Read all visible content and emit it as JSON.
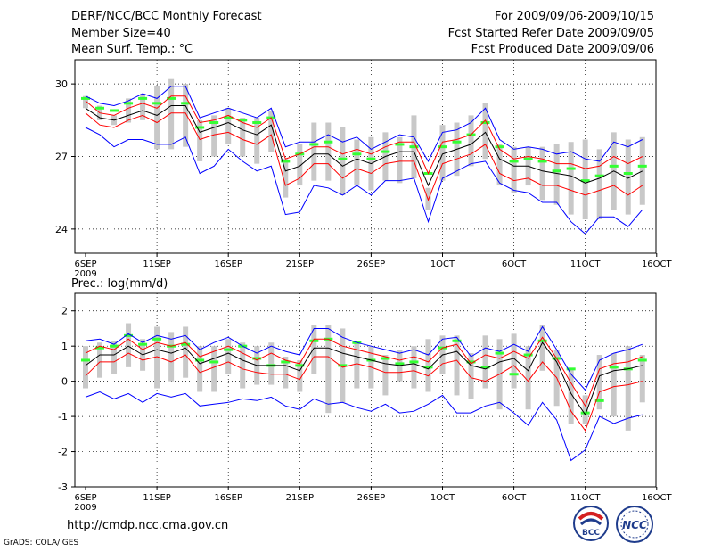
{
  "header": {
    "title": "DERF/NCC/BCC Monthly Forecast",
    "member_size": "Member Size=40",
    "variable": "Mean Surf. Temp.: °C",
    "period": "For 2009/09/06-2009/10/15",
    "refer_date": "Fcst Started Refer Date 2009/09/05",
    "produced_date": "Fcst Produced Date 2009/09/06"
  },
  "footer": {
    "url": "http://cmdp.ncc.cma.gov.cn",
    "credit": "GrADS: COLA/IGES",
    "logo_bcc": "BCC",
    "logo_ncc": "NCC"
  },
  "colors": {
    "max_min": "#0000ff",
    "ensemble_spread": "#ff0000",
    "ensemble_mean": "#000000",
    "box": "#c8c8c8",
    "member_mark": "#33ff33",
    "grid": "#000000"
  },
  "chart_data": [
    {
      "type": "line",
      "title": "Mean Surf. Temp.: °C",
      "x_tick_labels": [
        "6SEP",
        "11SEP",
        "16SEP",
        "21SEP",
        "26SEP",
        "1OCT",
        "6OCT",
        "11OCT",
        "16OCT"
      ],
      "x_year_label": "2009",
      "y_ticks": [
        24,
        27,
        30
      ],
      "ylim": [
        23,
        31
      ],
      "days": 40,
      "grid": true,
      "series": [
        {
          "name": "max",
          "values": [
            29.5,
            29.2,
            29.1,
            29.3,
            29.6,
            29.4,
            29.9,
            29.9,
            28.6,
            28.8,
            29.0,
            28.8,
            28.6,
            29.0,
            27.4,
            27.6,
            27.6,
            27.9,
            27.6,
            27.8,
            27.3,
            27.6,
            27.9,
            27.8,
            26.8,
            28.0,
            28.1,
            28.4,
            29.0,
            27.7,
            27.3,
            27.4,
            27.3,
            27.1,
            27.2,
            26.9,
            26.8,
            27.6,
            27.4,
            27.7
          ]
        },
        {
          "name": "upper",
          "values": [
            29.3,
            28.8,
            28.7,
            29.0,
            29.2,
            29.0,
            29.5,
            29.5,
            28.4,
            28.5,
            28.7,
            28.4,
            28.2,
            28.6,
            26.9,
            27.1,
            27.4,
            27.4,
            27.1,
            27.3,
            27.1,
            27.4,
            27.6,
            27.6,
            26.3,
            27.6,
            27.7,
            27.9,
            28.5,
            27.3,
            26.9,
            27.0,
            26.9,
            26.7,
            26.7,
            26.5,
            26.6,
            27.0,
            26.7,
            27.0
          ]
        },
        {
          "name": "mean",
          "values": [
            29.0,
            28.6,
            28.5,
            28.7,
            28.9,
            28.7,
            29.1,
            29.1,
            28.0,
            28.2,
            28.4,
            28.1,
            27.9,
            28.3,
            26.4,
            26.6,
            27.1,
            27.1,
            26.6,
            26.9,
            26.7,
            27.0,
            27.2,
            27.2,
            25.8,
            27.1,
            27.3,
            27.5,
            28.0,
            26.9,
            26.6,
            26.6,
            26.4,
            26.3,
            26.2,
            25.9,
            26.1,
            26.4,
            26.1,
            26.4
          ]
        },
        {
          "name": "lower",
          "values": [
            28.8,
            28.3,
            28.2,
            28.5,
            28.7,
            28.4,
            28.8,
            28.8,
            27.7,
            27.9,
            28.0,
            27.7,
            27.5,
            27.9,
            25.8,
            26.1,
            26.7,
            26.7,
            26.1,
            26.5,
            26.3,
            26.7,
            26.8,
            26.8,
            25.2,
            26.7,
            26.9,
            27.1,
            27.5,
            26.3,
            26.0,
            26.1,
            25.8,
            25.8,
            25.6,
            25.4,
            25.6,
            25.8,
            25.4,
            25.8
          ]
        },
        {
          "name": "min",
          "values": [
            28.2,
            27.9,
            27.4,
            27.7,
            27.7,
            27.5,
            27.5,
            27.8,
            26.3,
            26.6,
            27.3,
            26.8,
            26.4,
            26.6,
            24.6,
            24.7,
            25.8,
            25.7,
            25.4,
            25.8,
            25.4,
            26.0,
            26.0,
            26.1,
            24.3,
            26.1,
            26.4,
            26.7,
            26.8,
            25.9,
            25.6,
            25.5,
            25.1,
            25.1,
            24.3,
            23.8,
            24.5,
            24.5,
            24.1,
            24.8
          ]
        }
      ],
      "boxes": {
        "low": [
          29.0,
          28.5,
          28.3,
          28.4,
          28.5,
          27.3,
          27.3,
          27.4,
          26.8,
          27.0,
          27.5,
          27.0,
          26.7,
          27.2,
          25.3,
          25.8,
          26.0,
          26.0,
          25.4,
          25.8,
          25.6,
          26.0,
          25.9,
          26.1,
          24.8,
          26.0,
          26.2,
          26.6,
          26.9,
          25.8,
          25.5,
          25.8,
          25.2,
          25.0,
          24.6,
          24.4,
          24.4,
          24.8,
          24.6,
          25.0
        ],
        "high": [
          29.5,
          29.1,
          28.7,
          29.4,
          29.6,
          29.9,
          30.2,
          30.0,
          28.5,
          28.7,
          29.0,
          28.6,
          28.6,
          28.9,
          26.9,
          27.5,
          28.4,
          28.4,
          28.2,
          27.7,
          27.8,
          28.0,
          27.8,
          28.7,
          25.7,
          28.3,
          28.4,
          28.7,
          29.2,
          27.5,
          27.4,
          27.4,
          27.4,
          27.5,
          27.6,
          27.7,
          27.3,
          28.0,
          27.7,
          27.8
        ]
      },
      "member_marks": [
        29.4,
        29.0,
        28.9,
        29.2,
        29.4,
        29.2,
        29.4,
        29.2,
        28.2,
        28.4,
        28.6,
        28.5,
        28.4,
        28.6,
        26.8,
        27.1,
        27.5,
        27.6,
        26.9,
        27.1,
        26.9,
        27.2,
        27.5,
        27.4,
        26.3,
        27.4,
        27.6,
        27.9,
        28.4,
        27.4,
        26.8,
        26.9,
        26.8,
        26.4,
        26.5,
        26.0,
        26.2,
        26.6,
        26.3,
        26.6
      ]
    },
    {
      "type": "line",
      "title": "Prec.: log(mm/d)",
      "x_tick_labels": [
        "6SEP",
        "11SEP",
        "16SEP",
        "21SEP",
        "26SEP",
        "1OCT",
        "6OCT",
        "11OCT",
        "16OCT"
      ],
      "x_year_label": "2009",
      "y_ticks": [
        -3,
        -2,
        -1,
        0,
        1,
        2
      ],
      "ylim": [
        -3,
        2.5
      ],
      "days": 40,
      "grid": true,
      "series": [
        {
          "name": "max",
          "values": [
            1.15,
            1.2,
            1.05,
            1.35,
            1.1,
            1.3,
            1.2,
            1.3,
            0.9,
            1.1,
            1.25,
            1.0,
            0.8,
            1.0,
            0.85,
            0.75,
            1.5,
            1.5,
            1.25,
            1.1,
            1.0,
            0.9,
            0.8,
            0.9,
            0.75,
            1.2,
            1.25,
            0.7,
            0.95,
            0.85,
            1.05,
            0.85,
            1.55,
            0.9,
            0.2,
            -0.25,
            0.6,
            0.8,
            0.9,
            1.05
          ]
        },
        {
          "name": "upper",
          "values": [
            0.8,
            1.0,
            0.9,
            1.2,
            0.9,
            1.1,
            1.0,
            1.1,
            0.7,
            0.85,
            1.0,
            0.8,
            0.6,
            0.8,
            0.6,
            0.5,
            1.2,
            1.2,
            1.0,
            0.9,
            0.8,
            0.7,
            0.6,
            0.7,
            0.55,
            0.95,
            1.05,
            0.5,
            0.75,
            0.65,
            0.85,
            0.65,
            1.25,
            0.65,
            -0.05,
            -0.7,
            0.35,
            0.5,
            0.55,
            0.7
          ]
        },
        {
          "name": "mean",
          "values": [
            0.45,
            0.75,
            0.75,
            1.0,
            0.75,
            0.9,
            0.8,
            0.95,
            0.5,
            0.65,
            0.8,
            0.6,
            0.45,
            0.45,
            0.45,
            0.3,
            0.95,
            0.95,
            0.8,
            0.7,
            0.6,
            0.5,
            0.45,
            0.5,
            0.35,
            0.75,
            0.85,
            0.45,
            0.35,
            0.55,
            0.65,
            0.3,
            1.1,
            0.55,
            -0.35,
            -0.95,
            0.15,
            0.3,
            0.35,
            0.45
          ]
        },
        {
          "name": "lower",
          "values": [
            0.15,
            0.55,
            0.55,
            0.8,
            0.6,
            0.7,
            0.55,
            0.75,
            0.25,
            0.4,
            0.55,
            0.35,
            0.25,
            0.2,
            0.2,
            0.05,
            0.7,
            0.7,
            0.4,
            0.5,
            0.4,
            0.25,
            0.25,
            0.3,
            0.15,
            0.5,
            0.6,
            0.1,
            0.0,
            0.2,
            0.45,
            0.0,
            0.55,
            0.1,
            -0.85,
            -1.4,
            -0.3,
            -0.15,
            -0.1,
            0.0
          ]
        },
        {
          "name": "min",
          "values": [
            -0.45,
            -0.3,
            -0.5,
            -0.35,
            -0.6,
            -0.35,
            -0.45,
            -0.35,
            -0.7,
            -0.65,
            -0.6,
            -0.5,
            -0.55,
            -0.45,
            -0.7,
            -0.8,
            -0.5,
            -0.65,
            -0.6,
            -0.75,
            -0.85,
            -0.65,
            -0.9,
            -0.85,
            -0.65,
            -0.4,
            -0.9,
            -0.9,
            -0.7,
            -0.6,
            -0.9,
            -1.25,
            -0.6,
            -1.1,
            -2.25,
            -1.95,
            -1.0,
            -1.2,
            -1.05,
            -0.95
          ]
        },
        {
          "name": "max_thin_upper_hint",
          "values": []
        }
      ],
      "boxes": {
        "low": [
          -0.2,
          0.1,
          0.2,
          0.4,
          0.3,
          -0.2,
          0.0,
          0.1,
          -0.3,
          -0.3,
          0.2,
          -0.2,
          -0.1,
          -0.1,
          -0.2,
          -0.3,
          0.2,
          -0.9,
          -0.6,
          -0.2,
          -0.2,
          -0.4,
          0.0,
          -0.2,
          -0.3,
          0.2,
          -0.4,
          -0.5,
          -0.2,
          -0.8,
          -0.2,
          -0.8,
          0.3,
          -0.7,
          -1.2,
          -1.2,
          -0.8,
          -1.0,
          -1.4,
          -0.6
        ],
        "high": [
          1.0,
          1.1,
          1.15,
          1.65,
          1.2,
          1.55,
          1.4,
          1.55,
          1.0,
          1.0,
          1.2,
          1.1,
          1.0,
          1.1,
          0.7,
          0.6,
          1.6,
          1.6,
          1.5,
          1.15,
          1.0,
          0.75,
          0.9,
          1.0,
          1.2,
          1.3,
          1.3,
          0.8,
          1.3,
          1.2,
          1.35,
          1.0,
          1.6,
          0.9,
          0.35,
          -0.4,
          0.75,
          0.8,
          1.0,
          0.75
        ]
      },
      "member_marks": [
        0.6,
        0.95,
        1.0,
        1.3,
        1.05,
        1.2,
        1.0,
        1.05,
        0.6,
        0.55,
        0.9,
        1.0,
        0.65,
        0.45,
        0.55,
        0.45,
        1.15,
        1.2,
        0.45,
        1.1,
        0.6,
        0.65,
        0.5,
        0.55,
        0.4,
        0.95,
        1.15,
        0.55,
        0.4,
        0.8,
        0.2,
        0.75,
        1.15,
        0.65,
        0.35,
        -0.9,
        -0.55,
        0.4,
        0.35,
        0.6
      ]
    }
  ]
}
